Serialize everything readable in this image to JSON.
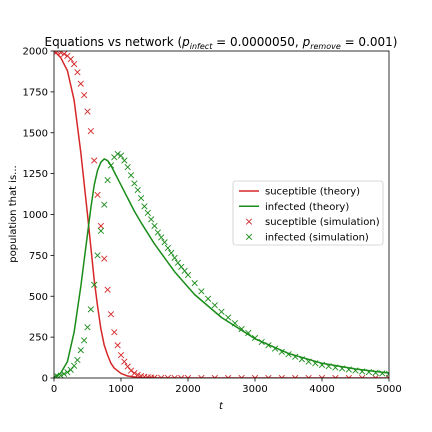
{
  "chart_data": {
    "type": "line",
    "title": {
      "main": "Equations vs network (",
      "p_infect_symbol": "p",
      "p_infect_sub": "infect",
      "p_infect_value": " = 0.0000050, ",
      "p_remove_symbol": "p",
      "p_remove_sub": "remove",
      "p_remove_value": " = 0.001)"
    },
    "xlabel": "t",
    "ylabel": "population that is...",
    "xlim": [
      0,
      5000
    ],
    "ylim": [
      0,
      2000
    ],
    "xticks": [
      0,
      1000,
      2000,
      3000,
      4000,
      5000
    ],
    "yticks": [
      0,
      250,
      500,
      750,
      1000,
      1250,
      1500,
      1750,
      2000
    ],
    "grid": false,
    "legend_position": "center-right",
    "colors": {
      "red": "#d62728",
      "green": "#1a8c1a"
    },
    "series": [
      {
        "name": "suceptible (theory)",
        "style": "line",
        "color": "#d62728",
        "x": [
          0,
          100,
          200,
          300,
          400,
          500,
          550,
          600,
          650,
          700,
          750,
          800,
          850,
          900,
          1000,
          1100,
          1200,
          1300,
          1500,
          1800,
          2500,
          5000
        ],
        "y": [
          2000,
          1960,
          1880,
          1700,
          1380,
          1000,
          800,
          600,
          440,
          300,
          200,
          140,
          90,
          60,
          28,
          12,
          6,
          3,
          1,
          0,
          0,
          0
        ]
      },
      {
        "name": "infected (theory)",
        "style": "line",
        "color": "#1a8c1a",
        "x": [
          0,
          100,
          200,
          300,
          400,
          500,
          550,
          600,
          650,
          700,
          750,
          800,
          850,
          900,
          1000,
          1100,
          1200,
          1300,
          1500,
          1800,
          2100,
          2500,
          3000,
          3500,
          4000,
          4500,
          5000
        ],
        "y": [
          5,
          30,
          100,
          280,
          560,
          880,
          1040,
          1180,
          1270,
          1320,
          1340,
          1330,
          1300,
          1260,
          1180,
          1100,
          1020,
          950,
          820,
          650,
          510,
          370,
          240,
          150,
          90,
          55,
          30
        ]
      },
      {
        "name": "suceptible (simulation)",
        "style": "marker",
        "color": "#d62728",
        "x": [
          0,
          50,
          100,
          150,
          200,
          250,
          300,
          350,
          400,
          450,
          500,
          550,
          600,
          650,
          700,
          750,
          800,
          850,
          900,
          950,
          1000,
          1050,
          1100,
          1150,
          1200,
          1250,
          1300,
          1350,
          1400,
          1450,
          1500,
          1600,
          1700,
          1800,
          1900,
          2000,
          2200,
          2400,
          2600,
          2800,
          3000,
          3200,
          3400,
          3600,
          3800,
          4000,
          4200,
          4400,
          4600,
          4800,
          5000
        ],
        "y": [
          2000,
          1997,
          1990,
          1982,
          1970,
          1950,
          1920,
          1870,
          1800,
          1730,
          1630,
          1510,
          1330,
          1120,
          930,
          730,
          540,
          390,
          280,
          200,
          140,
          100,
          70,
          45,
          30,
          20,
          12,
          8,
          5,
          3,
          2,
          1,
          1,
          0,
          0,
          0,
          0,
          0,
          0,
          0,
          0,
          0,
          0,
          0,
          0,
          0,
          0,
          0,
          0,
          0,
          0
        ]
      },
      {
        "name": "infected (simulation)",
        "style": "marker",
        "color": "#1a8c1a",
        "x": [
          0,
          50,
          100,
          150,
          200,
          250,
          300,
          350,
          400,
          450,
          500,
          550,
          600,
          650,
          700,
          750,
          800,
          850,
          900,
          950,
          1000,
          1050,
          1100,
          1150,
          1200,
          1250,
          1300,
          1350,
          1400,
          1450,
          1500,
          1550,
          1600,
          1650,
          1700,
          1750,
          1800,
          1850,
          1900,
          1950,
          2000,
          2100,
          2200,
          2300,
          2400,
          2500,
          2600,
          2700,
          2800,
          2900,
          3000,
          3100,
          3200,
          3300,
          3400,
          3500,
          3600,
          3700,
          3800,
          3900,
          4000,
          4100,
          4200,
          4300,
          4400,
          4500,
          4600,
          4700,
          4800,
          4900,
          5000
        ],
        "y": [
          5,
          10,
          15,
          25,
          35,
          50,
          75,
          110,
          170,
          230,
          310,
          420,
          570,
          750,
          900,
          1060,
          1210,
          1300,
          1350,
          1370,
          1360,
          1330,
          1290,
          1240,
          1190,
          1150,
          1100,
          1050,
          1010,
          970,
          930,
          890,
          860,
          830,
          795,
          765,
          735,
          705,
          680,
          655,
          630,
          580,
          530,
          485,
          445,
          405,
          370,
          335,
          300,
          275,
          245,
          220,
          200,
          180,
          160,
          145,
          130,
          115,
          100,
          90,
          80,
          72,
          64,
          58,
          52,
          46,
          40,
          36,
          32,
          28,
          25
        ]
      }
    ]
  }
}
